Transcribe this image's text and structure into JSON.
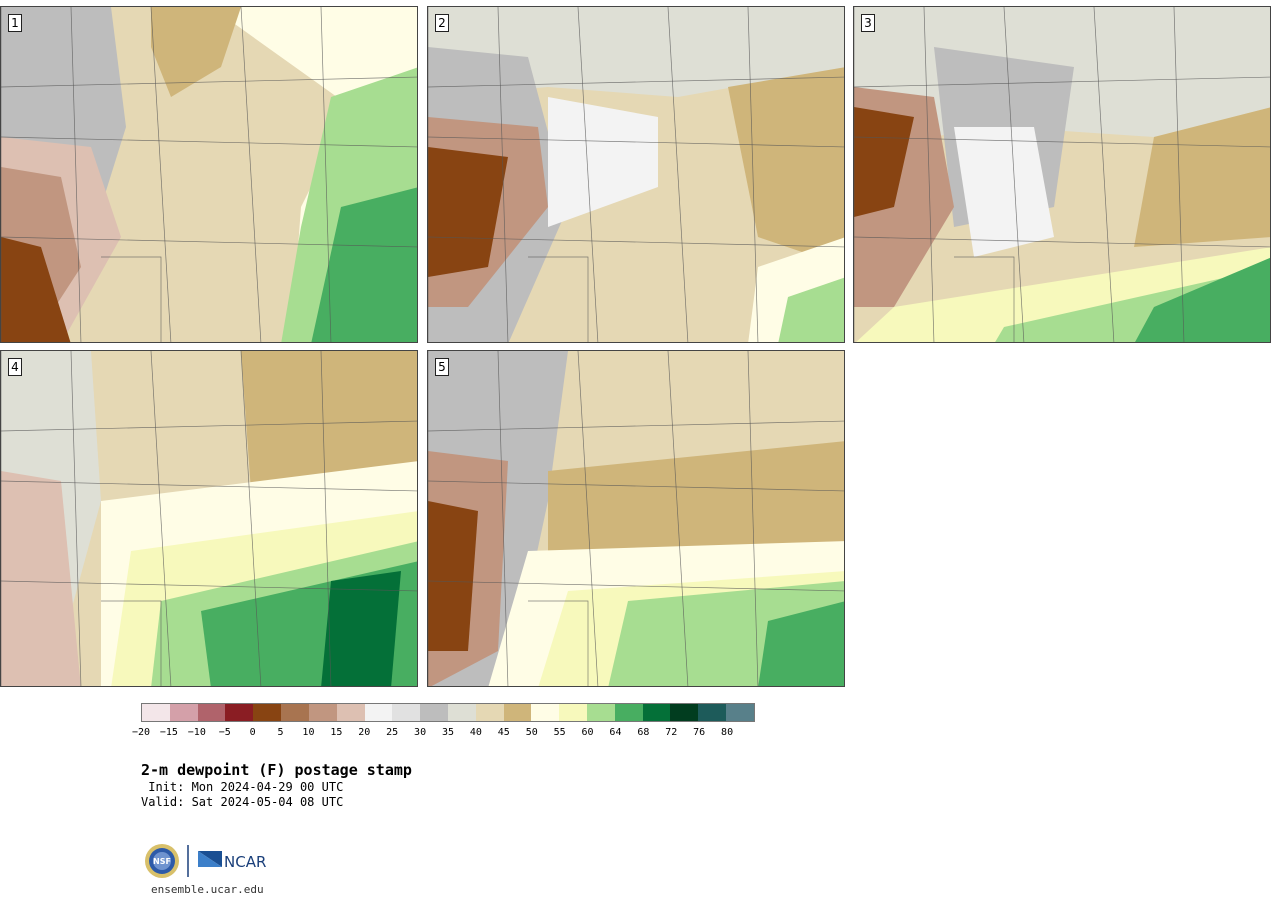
{
  "panels": [
    {
      "id": "p1",
      "label": "1",
      "scheme": "west_dry_east_moist"
    },
    {
      "id": "p2",
      "label": "2",
      "scheme": "dry_north_moist_southeast"
    },
    {
      "id": "p3",
      "label": "3",
      "scheme": "dry_north_moist_south"
    },
    {
      "id": "p4",
      "label": "4",
      "scheme": "moist_southeast_broad"
    },
    {
      "id": "p5",
      "label": "5",
      "scheme": "dry_west_moist_south"
    }
  ],
  "colorbar": {
    "colors": [
      "#f3e6e9",
      "#d4a0a9",
      "#b0636b",
      "#8a1d23",
      "#884412",
      "#a87450",
      "#c19680",
      "#ddc0b2",
      "#f3f3f3",
      "#e1e1e1",
      "#bdbdbd",
      "#dedfd5",
      "#e5d8b4",
      "#cfb57a",
      "#fffde6",
      "#f7f9bc",
      "#a7dd91",
      "#48ae61",
      "#047038",
      "#013d1f",
      "#1d5b5a",
      "#58808a"
    ],
    "tick_labels": [
      "−20",
      "−15",
      "−10",
      "−5",
      "0",
      "5",
      "10",
      "15",
      "20",
      "25",
      "30",
      "35",
      "40",
      "45",
      "50",
      "55",
      "60",
      "64",
      "68",
      "72",
      "76",
      "80"
    ]
  },
  "title": "2-m dewpoint (F) postage stamp",
  "init": " Init: Mon 2024-04-29 00 UTC",
  "valid": "Valid: Sat 2024-05-04 08 UTC",
  "logo": {
    "left_text": "NSF",
    "right_text": "NCAR"
  },
  "site": "ensemble.ucar.edu"
}
